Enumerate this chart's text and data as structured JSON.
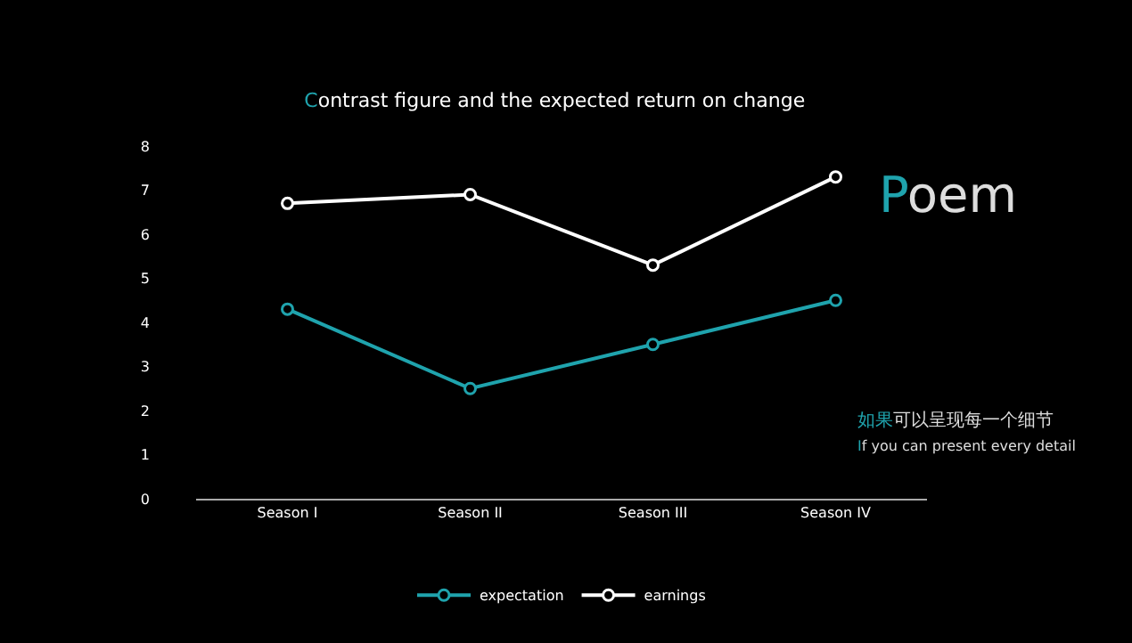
{
  "chart_data": {
    "type": "line",
    "title": "Contrast figure and the expected return on change",
    "categories": [
      "Season I",
      "Season II",
      "Season III",
      "Season IV"
    ],
    "series": [
      {
        "name": "expectation",
        "color": "#1fa3ad",
        "values": [
          4.3,
          2.5,
          3.5,
          4.5
        ]
      },
      {
        "name": "earnings",
        "color": "#ffffff",
        "values": [
          6.7,
          6.9,
          5.3,
          7.3
        ]
      }
    ],
    "ylim": [
      0,
      8
    ],
    "yticks": [
      0,
      1,
      2,
      3,
      4,
      5,
      6,
      7,
      8
    ],
    "grid": false,
    "legend": "bottom",
    "marker": "circle",
    "line_style": "solid",
    "annotations": [
      "Poem",
      "如果可以呈现每一个细节",
      "If you can present every detail"
    ]
  }
}
